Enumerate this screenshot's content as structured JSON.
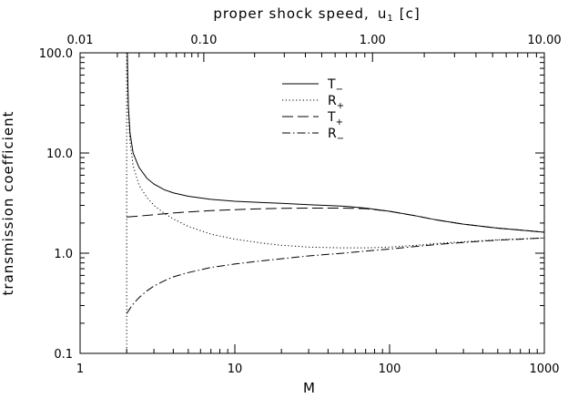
{
  "chart_data": {
    "type": "line",
    "xlabel": "M",
    "ylabel": "transmission coefficient",
    "top_axis_label": "proper shock speed,",
    "top_axis_symbol": "u",
    "top_axis_symbol_sub": "1",
    "top_axis_unit": "[c]",
    "x_scale": "log",
    "y_scale": "log",
    "xlim": [
      1,
      1000
    ],
    "ylim": [
      0.1,
      100
    ],
    "x_ticks": [
      1,
      10,
      100,
      1000
    ],
    "x_tick_labels": [
      "1",
      "10",
      "100",
      "1000"
    ],
    "y_ticks": [
      0.1,
      1,
      10,
      100
    ],
    "y_tick_labels": [
      "0.1",
      "1.0",
      "10.0",
      "100.0"
    ],
    "top_ticks": [
      {
        "label": "0.01",
        "M": 1.0
      },
      {
        "label": "0.10",
        "M": 6.3
      },
      {
        "label": "1.00",
        "M": 77.6
      },
      {
        "label": "10.00",
        "M": 1000
      }
    ],
    "legend_position": "top-center",
    "series": [
      {
        "name": "T",
        "sub": "−",
        "dash": "solid",
        "x": [
          2.02,
          2.03,
          2.05,
          2.1,
          2.2,
          2.4,
          2.7,
          3,
          3.5,
          4,
          5,
          7,
          10,
          15,
          20,
          30,
          50,
          70,
          100,
          150,
          200,
          300,
          500,
          700,
          1000
        ],
        "y": [
          100,
          60,
          30,
          16,
          10,
          7.2,
          5.6,
          4.9,
          4.3,
          4.0,
          3.7,
          3.45,
          3.3,
          3.2,
          3.15,
          3.05,
          2.95,
          2.82,
          2.62,
          2.35,
          2.15,
          1.95,
          1.78,
          1.7,
          1.62
        ]
      },
      {
        "name": "R",
        "sub": "+",
        "dash": "dotted",
        "x": [
          2.02,
          2.03,
          2.05,
          2.1,
          2.2,
          2.4,
          2.7,
          3,
          3.5,
          4,
          5,
          7,
          10,
          15,
          20,
          30,
          50,
          70,
          100,
          150,
          200,
          300,
          500,
          700,
          1000
        ],
        "y": [
          100,
          50,
          25,
          13,
          7.5,
          4.8,
          3.6,
          3.0,
          2.5,
          2.2,
          1.85,
          1.55,
          1.38,
          1.26,
          1.2,
          1.15,
          1.13,
          1.13,
          1.15,
          1.2,
          1.25,
          1.3,
          1.36,
          1.39,
          1.42
        ]
      },
      {
        "name": "T",
        "sub": "+",
        "dash": "dashed",
        "x": [
          2,
          2.5,
          3,
          4,
          5,
          7,
          10,
          15,
          20,
          30,
          50,
          70,
          100,
          150,
          200,
          300,
          500,
          700,
          1000
        ],
        "y": [
          2.3,
          2.36,
          2.42,
          2.52,
          2.58,
          2.66,
          2.72,
          2.78,
          2.8,
          2.82,
          2.82,
          2.78,
          2.62,
          2.35,
          2.15,
          1.95,
          1.78,
          1.7,
          1.62
        ]
      },
      {
        "name": "R",
        "sub": "−",
        "dash": "dashdot",
        "x": [
          2,
          2.1,
          2.2,
          2.4,
          2.7,
          3,
          3.5,
          4,
          5,
          7,
          10,
          15,
          20,
          30,
          50,
          70,
          100,
          150,
          200,
          300,
          500,
          700,
          1000
        ],
        "y": [
          0.25,
          0.28,
          0.31,
          0.36,
          0.42,
          0.47,
          0.53,
          0.58,
          0.64,
          0.72,
          0.78,
          0.84,
          0.88,
          0.94,
          1.0,
          1.05,
          1.1,
          1.17,
          1.22,
          1.28,
          1.35,
          1.38,
          1.42
        ]
      }
    ],
    "vertical_line": {
      "x": 2.0,
      "dash": "dotted"
    }
  }
}
